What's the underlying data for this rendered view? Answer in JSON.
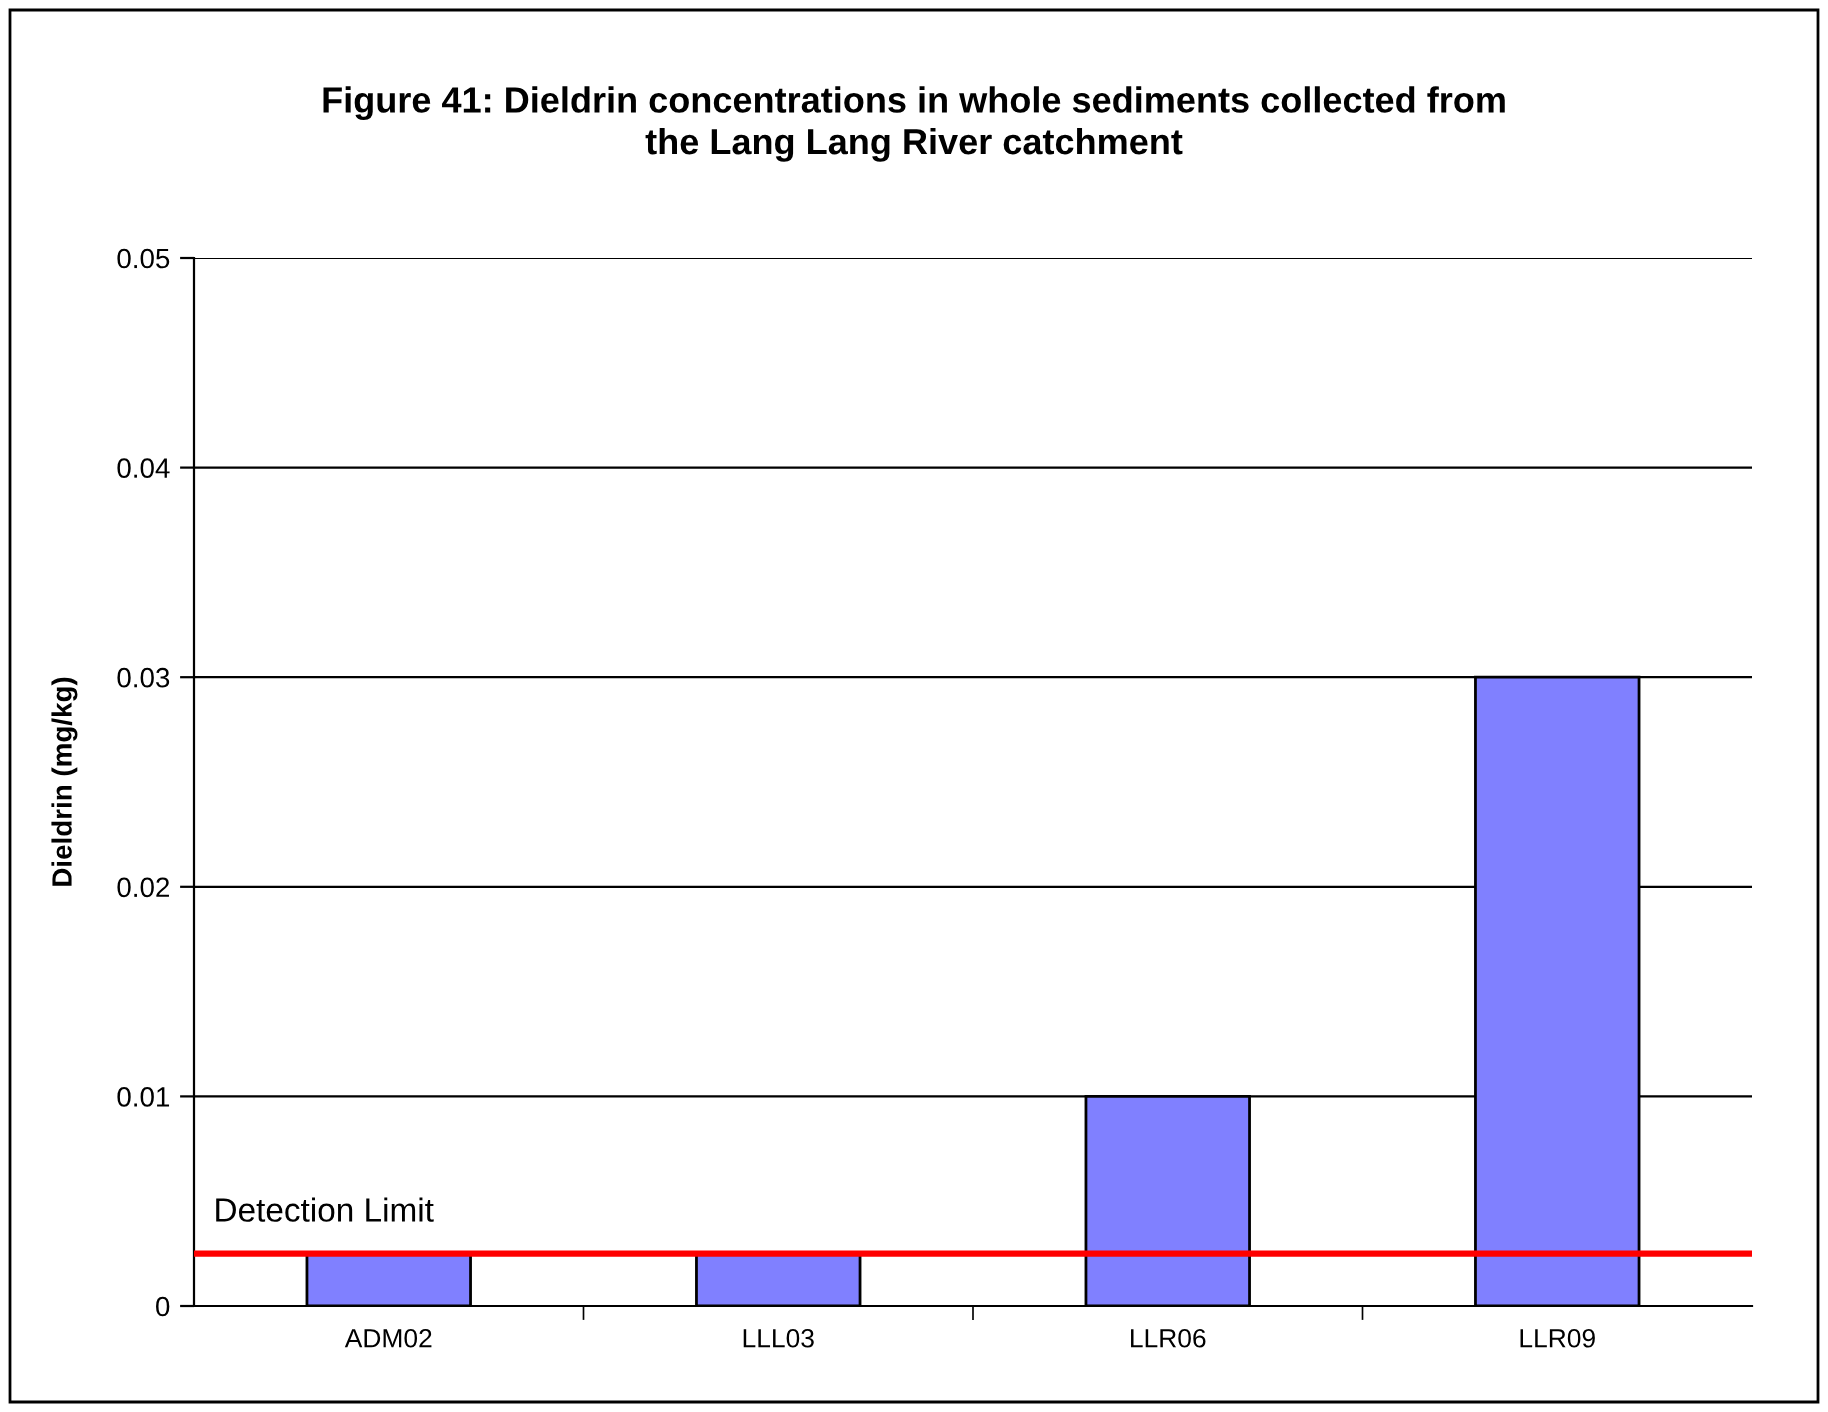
{
  "chart_data": {
    "type": "bar",
    "title": "Figure 41: Dieldrin concentrations in whole sediments collected from\nthe Lang Lang River catchment",
    "ylabel": "Dieldrin (mg/kg)",
    "categories": [
      "ADM02",
      "LLL03",
      "LLR06",
      "LLR09"
    ],
    "values": [
      0.0025,
      0.0025,
      0.01,
      0.03
    ],
    "color": "#8080ff",
    "ylim": [
      0,
      0.05
    ],
    "yticks": [
      0,
      0.01,
      0.02,
      0.03,
      0.04,
      0.05
    ],
    "grid": "y",
    "ref_lines": [
      {
        "axis": "y",
        "value": 0.0025,
        "label": "Detection Limit",
        "color": "#ff0000"
      }
    ]
  }
}
